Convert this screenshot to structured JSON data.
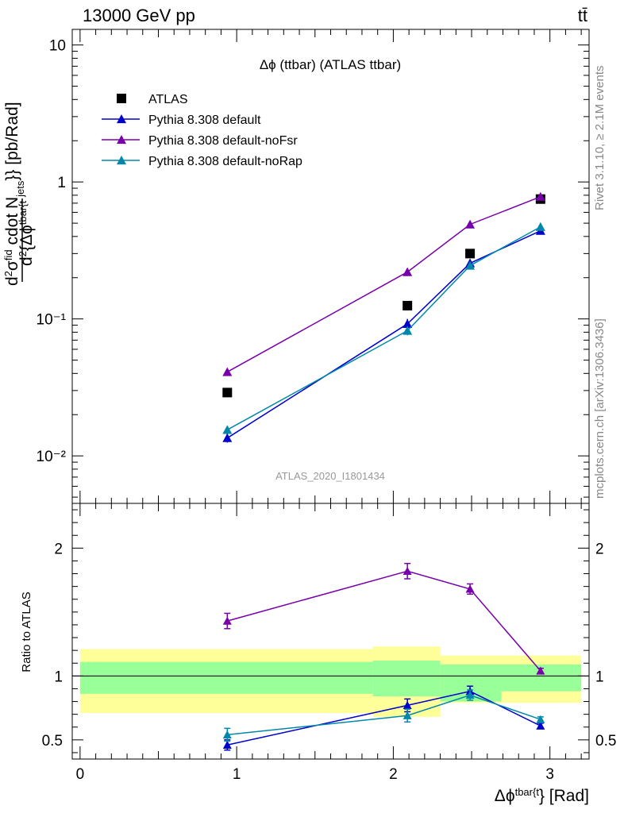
{
  "header": {
    "energy_label": "13000 GeV pp",
    "process_label": "tt̄"
  },
  "side_labels": {
    "rivet": "Rivet 3.1.10, ≥ 2.1M events",
    "source": "mcplots.cern.ch [arXiv:1306.3436]"
  },
  "chart_data": [
    {
      "type": "scatter",
      "title": "Δϕ (ttbar) (ATLAS ttbar)",
      "watermark": "ATLAS_2020_I1801434",
      "yscale": "log",
      "ylim": [
        0.0045,
        13
      ],
      "xlim": [
        -0.05,
        3.25
      ],
      "ylabel": "d²σfid / d²{Δϕtbar{t} cdot Njets}} [pb/Rad]",
      "yticks": [
        "10⁻²",
        "10⁻¹",
        "1",
        "10"
      ],
      "legend_position": "top-left",
      "colors": {
        "ATLAS": "#000000",
        "Pythia 8.308 default": "#0000cc",
        "Pythia 8.308 default-noFsr": "#7700aa",
        "Pythia 8.308 default-noRap": "#0088aa"
      },
      "x": [
        0.94,
        2.09,
        2.49,
        2.94
      ],
      "series": [
        {
          "name": "ATLAS",
          "marker": "square",
          "values": [
            0.029,
            0.125,
            0.3,
            0.75
          ]
        },
        {
          "name": "Pythia 8.308 default",
          "marker": "triangle",
          "values": [
            0.0135,
            0.092,
            0.255,
            0.44
          ],
          "errors": [
            0.001,
            0.008,
            0.012,
            0.015
          ]
        },
        {
          "name": "Pythia 8.308 default-noFsr",
          "marker": "triangle",
          "values": [
            0.041,
            0.22,
            0.49,
            0.78
          ],
          "errors": [
            0.002,
            0.008,
            0.012,
            0.02
          ]
        },
        {
          "name": "Pythia 8.308 default-noRap",
          "marker": "triangle",
          "values": [
            0.0155,
            0.082,
            0.245,
            0.47
          ],
          "errors": [
            0.001,
            0.006,
            0.01,
            0.015
          ]
        }
      ]
    },
    {
      "type": "scatter",
      "ylabel": "Ratio to ATLAS",
      "xlabel": "Δϕtbar{t}} [Rad]",
      "ylim": [
        0.35,
        2.35
      ],
      "xlim": [
        -0.05,
        3.25
      ],
      "yticks": [
        "0.5",
        "1",
        "2"
      ],
      "xticks": [
        "0",
        "1",
        "2",
        "3"
      ],
      "reference_line": 1,
      "bands": [
        {
          "x0": 0.0,
          "x1": 1.87,
          "inner": [
            0.86,
            1.11
          ],
          "outer": [
            0.71,
            1.21
          ]
        },
        {
          "x0": 1.87,
          "x1": 2.3,
          "inner": [
            0.84,
            1.12
          ],
          "outer": [
            0.68,
            1.23
          ]
        },
        {
          "x0": 2.3,
          "x1": 2.69,
          "inner": [
            0.8,
            1.09
          ],
          "outer": [
            0.79,
            1.16
          ]
        },
        {
          "x0": 2.69,
          "x1": 3.2,
          "inner": [
            0.88,
            1.09
          ],
          "outer": [
            0.79,
            1.16
          ]
        }
      ],
      "band_colors": {
        "inner": "#99ff99",
        "outer": "#ffff99"
      },
      "x": [
        0.94,
        2.09,
        2.49,
        2.94
      ],
      "series": [
        {
          "name": "Pythia 8.308 default",
          "values": [
            0.46,
            0.77,
            0.88,
            0.61
          ],
          "errors": [
            0.04,
            0.05,
            0.04,
            0.02
          ]
        },
        {
          "name": "Pythia 8.308 default-noFsr",
          "values": [
            1.43,
            1.82,
            1.68,
            1.04
          ],
          "errors": [
            0.06,
            0.06,
            0.04,
            0.02
          ]
        },
        {
          "name": "Pythia 8.308 default-noRap",
          "values": [
            0.54,
            0.69,
            0.85,
            0.66
          ],
          "errors": [
            0.05,
            0.05,
            0.04,
            0.02
          ]
        }
      ]
    }
  ]
}
